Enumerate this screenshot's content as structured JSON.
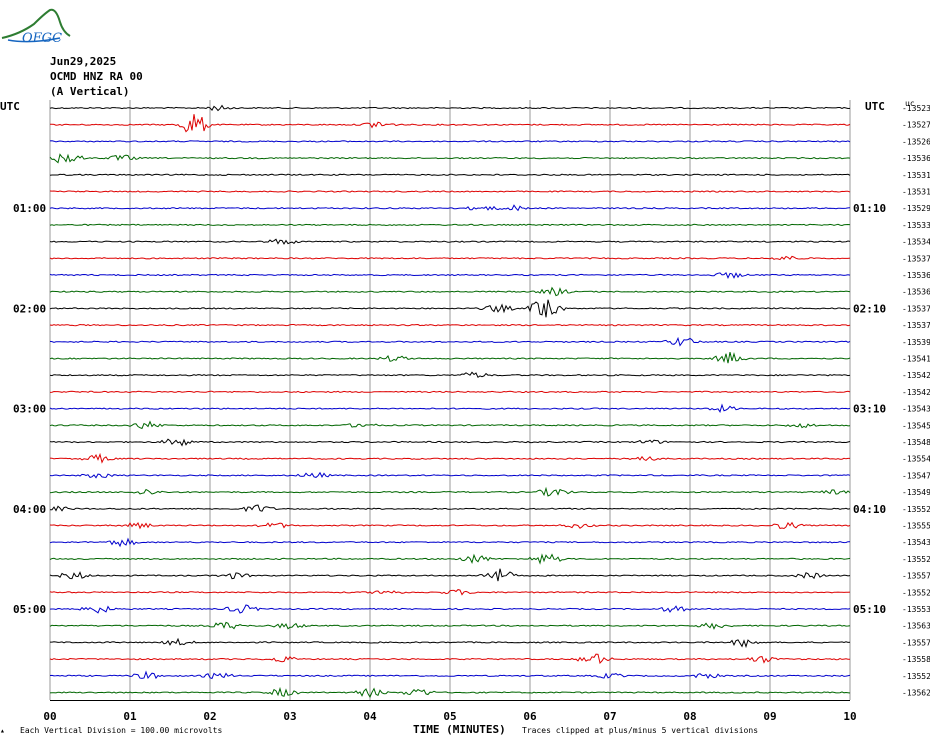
{
  "logo": {
    "text": "OFGC",
    "icon": "ofgc-logo-icon"
  },
  "header": {
    "date": "Jun29,2025",
    "station": "OCMD HNZ RA 00",
    "component": "(A Vertical)"
  },
  "utc_left": "UTC",
  "utc_right": "UTC",
  "units_label": "uc",
  "left_time_labels": [
    {
      "row": 6,
      "text": "01:00"
    },
    {
      "row": 12,
      "text": "02:00"
    },
    {
      "row": 18,
      "text": "03:00"
    },
    {
      "row": 24,
      "text": "04:00"
    },
    {
      "row": 30,
      "text": "05:00"
    }
  ],
  "right_time_labels": [
    {
      "row": 6,
      "text": "01:10"
    },
    {
      "row": 12,
      "text": "02:10"
    },
    {
      "row": 18,
      "text": "03:10"
    },
    {
      "row": 24,
      "text": "04:10"
    },
    {
      "row": 30,
      "text": "05:10"
    }
  ],
  "footer": {
    "left_note": "Each Vertical Division =  100.00 microvolts",
    "xlabel": "TIME (MINUTES)",
    "right_note": "Traces clipped at plus/minus 5 vertical divisions"
  },
  "chart_data": {
    "type": "line",
    "xlabel": "TIME (MINUTES)",
    "xlim": [
      0,
      10
    ],
    "x_ticks": [
      "00",
      "01",
      "02",
      "03",
      "04",
      "05",
      "06",
      "07",
      "08",
      "09",
      "10"
    ],
    "trace_colors": [
      "#000000",
      "#dd0000",
      "#0000cc",
      "#006600"
    ],
    "traces": [
      {
        "offset": "-13523",
        "events": [
          [
            2.1,
            0.5
          ]
        ]
      },
      {
        "offset": "-13527",
        "events": [
          [
            1.8,
            2.5
          ],
          [
            4.1,
            0.8
          ]
        ]
      },
      {
        "offset": "-13526",
        "events": []
      },
      {
        "offset": "-13536",
        "events": [
          [
            0.2,
            1.5
          ],
          [
            0.9,
            0.6
          ]
        ]
      },
      {
        "offset": "-13531",
        "events": []
      },
      {
        "offset": "-13531",
        "events": []
      },
      {
        "offset": "-13529",
        "events": [
          [
            5.4,
            0.5
          ],
          [
            5.8,
            0.5
          ]
        ]
      },
      {
        "offset": "-13533",
        "events": []
      },
      {
        "offset": "-13534",
        "events": [
          [
            2.9,
            0.6
          ]
        ]
      },
      {
        "offset": "-13537",
        "events": [
          [
            9.2,
            0.5
          ]
        ]
      },
      {
        "offset": "-13536",
        "events": [
          [
            8.5,
            0.6
          ]
        ]
      },
      {
        "offset": "-13536",
        "events": [
          [
            6.3,
            0.8
          ]
        ]
      },
      {
        "offset": "-13537",
        "events": [
          [
            5.6,
            0.8
          ],
          [
            6.2,
            3.0
          ]
        ]
      },
      {
        "offset": "-13537",
        "events": []
      },
      {
        "offset": "-13539",
        "events": [
          [
            7.9,
            1.0
          ]
        ]
      },
      {
        "offset": "-13541",
        "events": [
          [
            4.3,
            0.6
          ],
          [
            8.5,
            1.2
          ]
        ]
      },
      {
        "offset": "-13542",
        "events": [
          [
            5.3,
            0.6
          ]
        ]
      },
      {
        "offset": "-13542",
        "events": []
      },
      {
        "offset": "-13543",
        "events": [
          [
            8.4,
            0.6
          ]
        ]
      },
      {
        "offset": "-13545",
        "events": [
          [
            1.2,
            0.8
          ],
          [
            3.9,
            0.5
          ],
          [
            9.4,
            0.4
          ]
        ]
      },
      {
        "offset": "-13548",
        "events": [
          [
            1.6,
            0.9
          ],
          [
            7.5,
            0.4
          ]
        ]
      },
      {
        "offset": "-13554",
        "events": [
          [
            0.6,
            0.8
          ],
          [
            7.4,
            0.6
          ]
        ]
      },
      {
        "offset": "-13547",
        "events": [
          [
            0.6,
            0.5
          ],
          [
            3.3,
            0.6
          ]
        ]
      },
      {
        "offset": "-13549",
        "events": [
          [
            1.2,
            0.6
          ],
          [
            6.3,
            1.0
          ],
          [
            9.8,
            0.4
          ]
        ]
      },
      {
        "offset": "-13552",
        "events": [
          [
            0.1,
            0.4
          ],
          [
            2.6,
            0.8
          ]
        ]
      },
      {
        "offset": "-13555",
        "events": [
          [
            1.1,
            0.6
          ],
          [
            2.8,
            0.6
          ],
          [
            6.6,
            0.5
          ],
          [
            9.2,
            0.7
          ]
        ]
      },
      {
        "offset": "-13543",
        "events": [
          [
            0.9,
            0.8
          ]
        ]
      },
      {
        "offset": "-13552",
        "events": [
          [
            5.3,
            0.9
          ],
          [
            6.2,
            1.2
          ]
        ]
      },
      {
        "offset": "-13557",
        "events": [
          [
            0.3,
            0.8
          ],
          [
            2.3,
            0.6
          ],
          [
            5.6,
            1.5
          ],
          [
            9.5,
            0.6
          ]
        ]
      },
      {
        "offset": "-13552",
        "events": [
          [
            4.2,
            0.5
          ],
          [
            5.1,
            0.5
          ]
        ]
      },
      {
        "offset": "-13553",
        "events": [
          [
            0.6,
            0.8
          ],
          [
            2.4,
            0.9
          ],
          [
            7.8,
            0.6
          ]
        ]
      },
      {
        "offset": "-13563",
        "events": [
          [
            2.2,
            0.8
          ],
          [
            3.0,
            0.6
          ],
          [
            8.3,
            0.6
          ]
        ]
      },
      {
        "offset": "-13557",
        "events": [
          [
            1.6,
            0.6
          ],
          [
            8.7,
            0.9
          ]
        ]
      },
      {
        "offset": "-13558",
        "events": [
          [
            2.9,
            0.6
          ],
          [
            6.8,
            1.2
          ],
          [
            8.9,
            0.7
          ]
        ]
      },
      {
        "offset": "-13552",
        "events": [
          [
            1.2,
            0.7
          ],
          [
            2.1,
            0.6
          ],
          [
            7.0,
            0.5
          ],
          [
            8.2,
            0.5
          ]
        ]
      },
      {
        "offset": "-13562",
        "events": [
          [
            2.9,
            0.8
          ],
          [
            4.0,
            0.9
          ],
          [
            4.6,
            0.9
          ]
        ]
      }
    ]
  }
}
